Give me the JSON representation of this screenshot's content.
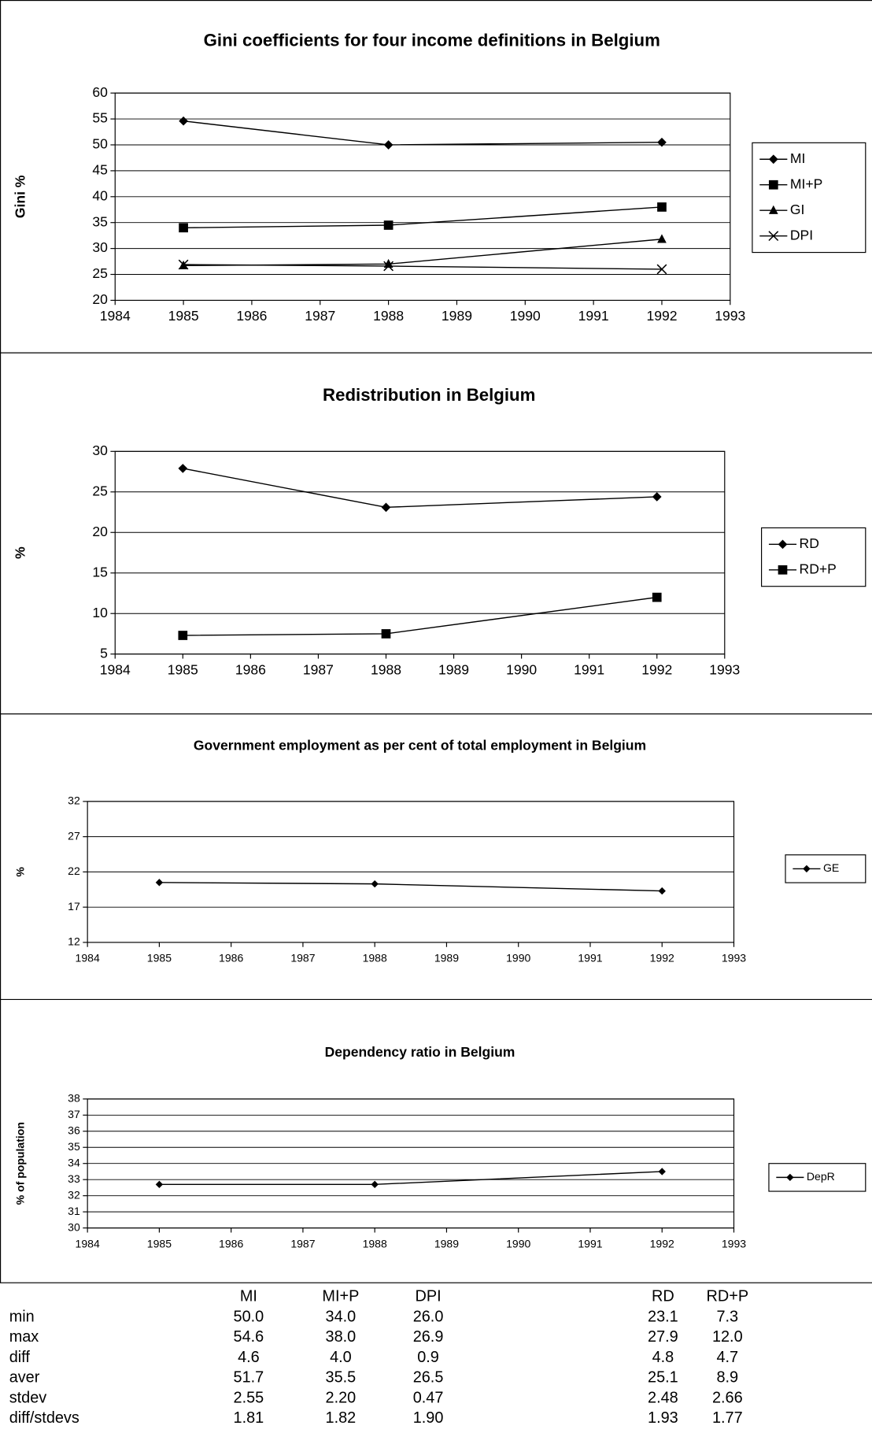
{
  "chart_data": [
    {
      "type": "line",
      "title": "Gini coefficients for four income definitions in Belgium",
      "ylabel": "Gini %",
      "x": [
        1985,
        1988,
        1992
      ],
      "xlim": [
        1984,
        1993
      ],
      "xticks": [
        1984,
        1985,
        1986,
        1987,
        1988,
        1989,
        1990,
        1991,
        1992,
        1993
      ],
      "ylim": [
        20,
        60
      ],
      "yticks": [
        20,
        25,
        30,
        35,
        40,
        45,
        50,
        55,
        60
      ],
      "grid": true,
      "legend": "right",
      "series": [
        {
          "name": "MI",
          "color": "#000000",
          "marker": "diamond",
          "values": [
            54.6,
            50.0,
            50.5
          ]
        },
        {
          "name": "MI+P",
          "color": "#000000",
          "marker": "square",
          "values": [
            34.0,
            34.5,
            38.0
          ]
        },
        {
          "name": "GI",
          "color": "#000000",
          "marker": "triangle",
          "values": [
            26.7,
            27.0,
            31.8
          ]
        },
        {
          "name": "DPI",
          "color": "#000000",
          "marker": "x",
          "values": [
            26.9,
            26.6,
            26.0
          ]
        }
      ]
    },
    {
      "type": "line",
      "title": "Redistribution in Belgium",
      "ylabel": "%",
      "x": [
        1985,
        1988,
        1992
      ],
      "xlim": [
        1984,
        1993
      ],
      "xticks": [
        1984,
        1985,
        1986,
        1987,
        1988,
        1989,
        1990,
        1991,
        1992,
        1993
      ],
      "ylim": [
        5,
        30
      ],
      "yticks": [
        5,
        10,
        15,
        20,
        25,
        30
      ],
      "grid": true,
      "legend": "right",
      "series": [
        {
          "name": "RD",
          "color": "#000000",
          "marker": "diamond",
          "values": [
            27.9,
            23.1,
            24.4
          ]
        },
        {
          "name": "RD+P",
          "color": "#000000",
          "marker": "square",
          "values": [
            7.3,
            7.5,
            12.0
          ]
        }
      ]
    },
    {
      "type": "line",
      "title": "Government employment as per cent of total employment in Belgium",
      "ylabel": "%",
      "x": [
        1985,
        1988,
        1992
      ],
      "xlim": [
        1984,
        1993
      ],
      "xticks": [
        1984,
        1985,
        1986,
        1987,
        1988,
        1989,
        1990,
        1991,
        1992,
        1993
      ],
      "ylim": [
        12,
        32
      ],
      "yticks": [
        12,
        17,
        22,
        27,
        32
      ],
      "grid": true,
      "legend": "right",
      "series": [
        {
          "name": "GE",
          "color": "#000000",
          "marker": "diamond",
          "values": [
            20.5,
            20.3,
            19.3
          ]
        }
      ]
    },
    {
      "type": "line",
      "title": "Dependency ratio in Belgium",
      "ylabel": "% of population",
      "x": [
        1985,
        1988,
        1992
      ],
      "xlim": [
        1984,
        1993
      ],
      "xticks": [
        1984,
        1985,
        1986,
        1987,
        1988,
        1989,
        1990,
        1991,
        1992,
        1993
      ],
      "ylim": [
        30,
        38
      ],
      "yticks": [
        30,
        31,
        32,
        33,
        34,
        35,
        36,
        37,
        38
      ],
      "grid": true,
      "legend": "right",
      "series": [
        {
          "name": "DepR",
          "color": "#000000",
          "marker": "diamond",
          "values": [
            32.7,
            32.7,
            33.5
          ]
        }
      ]
    }
  ],
  "table": {
    "columns": [
      "MI",
      "MI+P",
      "DPI",
      "RD",
      "RD+P"
    ],
    "rows": [
      {
        "label": "min",
        "values": [
          "50.0",
          "34.0",
          "26.0",
          "23.1",
          "7.3"
        ]
      },
      {
        "label": "max",
        "values": [
          "54.6",
          "38.0",
          "26.9",
          "27.9",
          "12.0"
        ]
      },
      {
        "label": "diff",
        "values": [
          "4.6",
          "4.0",
          "0.9",
          "4.8",
          "4.7"
        ]
      },
      {
        "label": "aver",
        "values": [
          "51.7",
          "35.5",
          "26.5",
          "25.1",
          "8.9"
        ]
      },
      {
        "label": "stdev",
        "values": [
          "2.55",
          "2.20",
          "0.47",
          "2.48",
          "2.66"
        ]
      },
      {
        "label": "diff/stdevs",
        "values": [
          "1.81",
          "1.82",
          "1.90",
          "1.93",
          "1.77"
        ]
      }
    ]
  }
}
